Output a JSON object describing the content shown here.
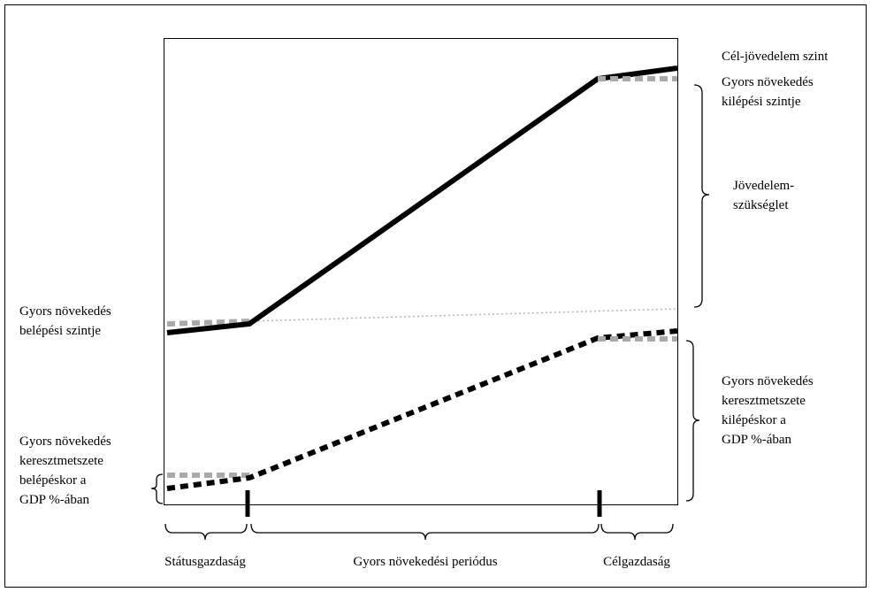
{
  "colors": {
    "line": "#000000",
    "reference": "#a9a9a9",
    "trend": "#b4b4b4",
    "frame": "#000000"
  },
  "labels": {
    "target_income_level": "Cél-jövedelem szint",
    "exit_level": [
      "Gyors növekedés",
      "kilépési szintje"
    ],
    "income_need": [
      "Jövedelem-",
      "szükséglet"
    ],
    "entry_level": [
      "Gyors növekedés",
      "belépési szintje"
    ],
    "cross_section_exit": [
      "Gyors növekedés",
      "keresztmetszete",
      "kilépéskor a",
      "GDP %-ában"
    ],
    "cross_section_entry": [
      "Gyors növekedés",
      "keresztmetszete",
      "belépéskor a",
      "GDP %-ában"
    ]
  },
  "phases": [
    {
      "name": "Státusgazdaság"
    },
    {
      "name": "Gyors növekedési periódus"
    },
    {
      "name": "Célgazdaság"
    }
  ]
}
